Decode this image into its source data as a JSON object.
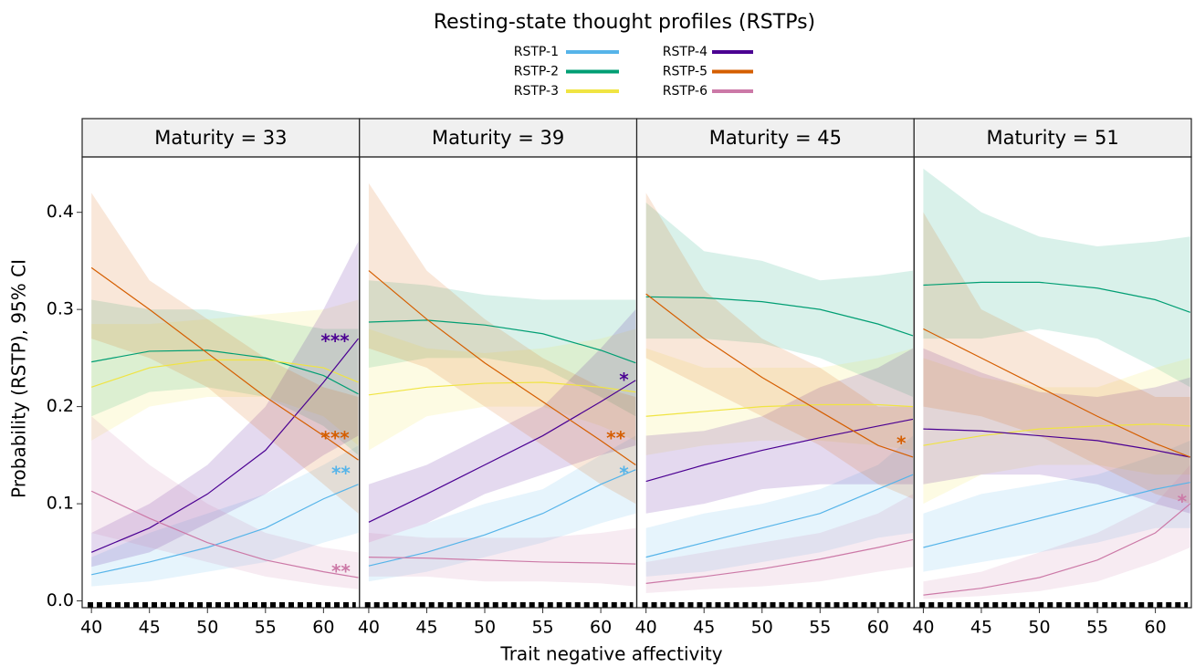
{
  "figure": {
    "title": "Resting-state thought profiles (RSTPs)",
    "x_label": "Trait negative affectivity",
    "y_label": "Probability (RSTP), 95% CI"
  },
  "chart_data": [
    {
      "type": "line",
      "title": "Maturity = 33",
      "x": [
        40,
        45,
        50,
        55,
        60,
        63
      ],
      "xlim": [
        39.2,
        63.1
      ],
      "xticks": [
        40,
        45,
        50,
        55,
        60
      ],
      "ylim": [
        -0.007,
        0.457
      ],
      "yticks": [
        {
          "value": 0,
          "label": "0.0"
        },
        0.1,
        0.2,
        0.3,
        0.4
      ],
      "series": [
        {
          "name": "RSTP-1",
          "color": "#56b4e9",
          "values": [
            0.027,
            0.04,
            0.055,
            0.075,
            0.105,
            0.12
          ],
          "lower": [
            0.015,
            0.02,
            0.03,
            0.04,
            0.06,
            0.07
          ],
          "upper": [
            0.045,
            0.07,
            0.09,
            0.11,
            0.14,
            0.16
          ]
        },
        {
          "name": "RSTP-2",
          "color": "#009e73",
          "values": [
            0.246,
            0.257,
            0.258,
            0.25,
            0.232,
            0.213
          ],
          "lower": [
            0.19,
            0.215,
            0.22,
            0.21,
            0.18,
            0.15
          ],
          "upper": [
            0.31,
            0.3,
            0.3,
            0.29,
            0.28,
            0.28
          ]
        },
        {
          "name": "RSTP-3",
          "color": "#f0e442",
          "values": [
            0.22,
            0.24,
            0.248,
            0.248,
            0.24,
            0.225
          ],
          "lower": [
            0.165,
            0.2,
            0.21,
            0.21,
            0.19,
            0.16
          ],
          "upper": [
            0.285,
            0.285,
            0.29,
            0.295,
            0.3,
            0.31
          ]
        },
        {
          "name": "RSTP-4",
          "color": "#4b0092",
          "values": [
            0.05,
            0.075,
            0.11,
            0.155,
            0.225,
            0.27
          ],
          "lower": [
            0.035,
            0.05,
            0.08,
            0.11,
            0.15,
            0.17
          ],
          "upper": [
            0.07,
            0.1,
            0.14,
            0.2,
            0.3,
            0.37
          ]
        },
        {
          "name": "RSTP-5",
          "color": "#d55e00",
          "values": [
            0.343,
            0.3,
            0.255,
            0.21,
            0.17,
            0.145
          ],
          "lower": [
            0.27,
            0.25,
            0.22,
            0.17,
            0.12,
            0.09
          ],
          "upper": [
            0.42,
            0.33,
            0.29,
            0.25,
            0.22,
            0.21
          ]
        },
        {
          "name": "RSTP-6",
          "color": "#cc79a7",
          "values": [
            0.113,
            0.085,
            0.06,
            0.042,
            0.03,
            0.024
          ],
          "lower": [
            0.07,
            0.055,
            0.04,
            0.025,
            0.016,
            0.012
          ],
          "upper": [
            0.19,
            0.14,
            0.1,
            0.07,
            0.055,
            0.05
          ]
        }
      ],
      "annotations": [
        {
          "text": "***",
          "x": 61,
          "y": 0.27,
          "color": "#4b0092"
        },
        {
          "text": "***",
          "x": 61,
          "y": 0.17,
          "color": "#d55e00"
        },
        {
          "text": "**",
          "x": 61.5,
          "y": 0.134,
          "color": "#56b4e9"
        },
        {
          "text": "**",
          "x": 61.5,
          "y": 0.033,
          "color": "#cc79a7"
        }
      ]
    },
    {
      "type": "line",
      "title": "Maturity = 39",
      "x": [
        40,
        45,
        50,
        55,
        60,
        63
      ],
      "xlim": [
        39.2,
        63.1
      ],
      "xticks": [
        40,
        45,
        50,
        55,
        60
      ],
      "ylim": [
        -0.007,
        0.457
      ],
      "series": [
        {
          "name": "RSTP-1",
          "color": "#56b4e9",
          "values": [
            0.036,
            0.05,
            0.068,
            0.09,
            0.12,
            0.135
          ],
          "lower": [
            0.02,
            0.03,
            0.045,
            0.06,
            0.08,
            0.09
          ],
          "upper": [
            0.06,
            0.08,
            0.1,
            0.115,
            0.15,
            0.17
          ]
        },
        {
          "name": "RSTP-2",
          "color": "#009e73",
          "values": [
            0.287,
            0.289,
            0.284,
            0.275,
            0.258,
            0.245
          ],
          "lower": [
            0.24,
            0.25,
            0.25,
            0.24,
            0.21,
            0.19
          ],
          "upper": [
            0.33,
            0.325,
            0.315,
            0.31,
            0.31,
            0.31
          ]
        },
        {
          "name": "RSTP-3",
          "color": "#f0e442",
          "values": [
            0.212,
            0.22,
            0.224,
            0.225,
            0.22,
            0.215
          ],
          "lower": [
            0.155,
            0.19,
            0.2,
            0.2,
            0.18,
            0.165
          ],
          "upper": [
            0.28,
            0.26,
            0.255,
            0.26,
            0.27,
            0.28
          ]
        },
        {
          "name": "RSTP-4",
          "color": "#4b0092",
          "values": [
            0.081,
            0.11,
            0.14,
            0.17,
            0.205,
            0.227
          ],
          "lower": [
            0.06,
            0.08,
            0.11,
            0.13,
            0.15,
            0.16
          ],
          "upper": [
            0.12,
            0.14,
            0.17,
            0.2,
            0.26,
            0.3
          ]
        },
        {
          "name": "RSTP-5",
          "color": "#d55e00",
          "values": [
            0.34,
            0.29,
            0.245,
            0.205,
            0.165,
            0.14
          ],
          "lower": [
            0.26,
            0.24,
            0.2,
            0.16,
            0.12,
            0.1
          ],
          "upper": [
            0.43,
            0.34,
            0.29,
            0.25,
            0.22,
            0.21
          ]
        },
        {
          "name": "RSTP-6",
          "color": "#cc79a7",
          "values": [
            0.045,
            0.044,
            0.042,
            0.04,
            0.039,
            0.038
          ],
          "lower": [
            0.025,
            0.025,
            0.02,
            0.02,
            0.018,
            0.015
          ],
          "upper": [
            0.07,
            0.065,
            0.065,
            0.065,
            0.07,
            0.075
          ]
        }
      ],
      "annotations": [
        {
          "text": "*",
          "x": 62,
          "y": 0.23,
          "color": "#4b0092"
        },
        {
          "text": "**",
          "x": 61.3,
          "y": 0.17,
          "color": "#d55e00"
        },
        {
          "text": "*",
          "x": 62,
          "y": 0.134,
          "color": "#56b4e9"
        }
      ]
    },
    {
      "type": "line",
      "title": "Maturity = 45",
      "x": [
        40,
        45,
        50,
        55,
        60,
        63
      ],
      "xlim": [
        39.2,
        63.1
      ],
      "xticks": [
        40,
        45,
        50,
        55,
        60
      ],
      "ylim": [
        -0.007,
        0.457
      ],
      "series": [
        {
          "name": "RSTP-1",
          "color": "#56b4e9",
          "values": [
            0.045,
            0.06,
            0.075,
            0.09,
            0.115,
            0.13
          ],
          "lower": [
            0.025,
            0.03,
            0.04,
            0.05,
            0.065,
            0.07
          ],
          "upper": [
            0.075,
            0.09,
            0.1,
            0.115,
            0.14,
            0.17
          ]
        },
        {
          "name": "RSTP-2",
          "color": "#009e73",
          "values": [
            0.313,
            0.312,
            0.308,
            0.3,
            0.285,
            0.273
          ],
          "lower": [
            0.27,
            0.27,
            0.265,
            0.25,
            0.225,
            0.21
          ],
          "upper": [
            0.41,
            0.36,
            0.35,
            0.33,
            0.335,
            0.34
          ]
        },
        {
          "name": "RSTP-3",
          "color": "#f0e442",
          "values": [
            0.19,
            0.195,
            0.2,
            0.202,
            0.202,
            0.2
          ],
          "lower": [
            0.15,
            0.16,
            0.165,
            0.165,
            0.16,
            0.155
          ],
          "upper": [
            0.26,
            0.24,
            0.24,
            0.24,
            0.25,
            0.26
          ]
        },
        {
          "name": "RSTP-4",
          "color": "#4b0092",
          "values": [
            0.123,
            0.14,
            0.155,
            0.168,
            0.18,
            0.187
          ],
          "lower": [
            0.09,
            0.1,
            0.115,
            0.12,
            0.12,
            0.12
          ],
          "upper": [
            0.17,
            0.175,
            0.19,
            0.22,
            0.24,
            0.26
          ]
        },
        {
          "name": "RSTP-5",
          "color": "#d55e00",
          "values": [
            0.316,
            0.27,
            0.23,
            0.195,
            0.16,
            0.148
          ],
          "lower": [
            0.25,
            0.22,
            0.19,
            0.16,
            0.12,
            0.105
          ],
          "upper": [
            0.42,
            0.32,
            0.27,
            0.24,
            0.2,
            0.2
          ]
        },
        {
          "name": "RSTP-6",
          "color": "#cc79a7",
          "values": [
            0.018,
            0.025,
            0.033,
            0.043,
            0.055,
            0.063
          ],
          "lower": [
            0.008,
            0.012,
            0.015,
            0.02,
            0.03,
            0.035
          ],
          "upper": [
            0.04,
            0.05,
            0.06,
            0.07,
            0.09,
            0.11
          ]
        }
      ],
      "annotations": [
        {
          "text": "*",
          "x": 62,
          "y": 0.165,
          "color": "#d55e00"
        }
      ]
    },
    {
      "type": "line",
      "title": "Maturity = 51",
      "x": [
        40,
        45,
        50,
        55,
        60,
        63
      ],
      "xlim": [
        39.2,
        63.1
      ],
      "xticks": [
        40,
        45,
        50,
        55,
        60
      ],
      "ylim": [
        -0.007,
        0.457
      ],
      "series": [
        {
          "name": "RSTP-1",
          "color": "#56b4e9",
          "values": [
            0.055,
            0.07,
            0.085,
            0.1,
            0.115,
            0.122
          ],
          "lower": [
            0.03,
            0.04,
            0.05,
            0.06,
            0.075,
            0.075
          ],
          "upper": [
            0.09,
            0.11,
            0.12,
            0.13,
            0.15,
            0.165
          ]
        },
        {
          "name": "RSTP-2",
          "color": "#009e73",
          "values": [
            0.325,
            0.328,
            0.328,
            0.322,
            0.31,
            0.297
          ],
          "lower": [
            0.27,
            0.27,
            0.28,
            0.27,
            0.24,
            0.22
          ],
          "upper": [
            0.445,
            0.4,
            0.375,
            0.365,
            0.37,
            0.375
          ]
        },
        {
          "name": "RSTP-3",
          "color": "#f0e442",
          "values": [
            0.16,
            0.17,
            0.177,
            0.18,
            0.182,
            0.18
          ],
          "lower": [
            0.1,
            0.13,
            0.14,
            0.14,
            0.13,
            0.13
          ],
          "upper": [
            0.25,
            0.23,
            0.22,
            0.22,
            0.24,
            0.25
          ]
        },
        {
          "name": "RSTP-4",
          "color": "#4b0092",
          "values": [
            0.177,
            0.175,
            0.17,
            0.165,
            0.155,
            0.148
          ],
          "lower": [
            0.12,
            0.13,
            0.13,
            0.12,
            0.1,
            0.09
          ],
          "upper": [
            0.26,
            0.235,
            0.215,
            0.21,
            0.22,
            0.23
          ]
        },
        {
          "name": "RSTP-5",
          "color": "#d55e00",
          "values": [
            0.28,
            0.25,
            0.22,
            0.19,
            0.162,
            0.148
          ],
          "lower": [
            0.2,
            0.19,
            0.17,
            0.14,
            0.11,
            0.1
          ],
          "upper": [
            0.4,
            0.3,
            0.27,
            0.24,
            0.21,
            0.21
          ]
        },
        {
          "name": "RSTP-6",
          "color": "#cc79a7",
          "values": [
            0.006,
            0.013,
            0.024,
            0.042,
            0.07,
            0.1
          ],
          "lower": [
            0.002,
            0.005,
            0.01,
            0.02,
            0.04,
            0.055
          ],
          "upper": [
            0.02,
            0.03,
            0.05,
            0.07,
            0.1,
            0.14
          ]
        }
      ],
      "annotations": [
        {
          "text": "*",
          "x": 62.3,
          "y": 0.105,
          "color": "#cc79a7"
        }
      ]
    }
  ]
}
